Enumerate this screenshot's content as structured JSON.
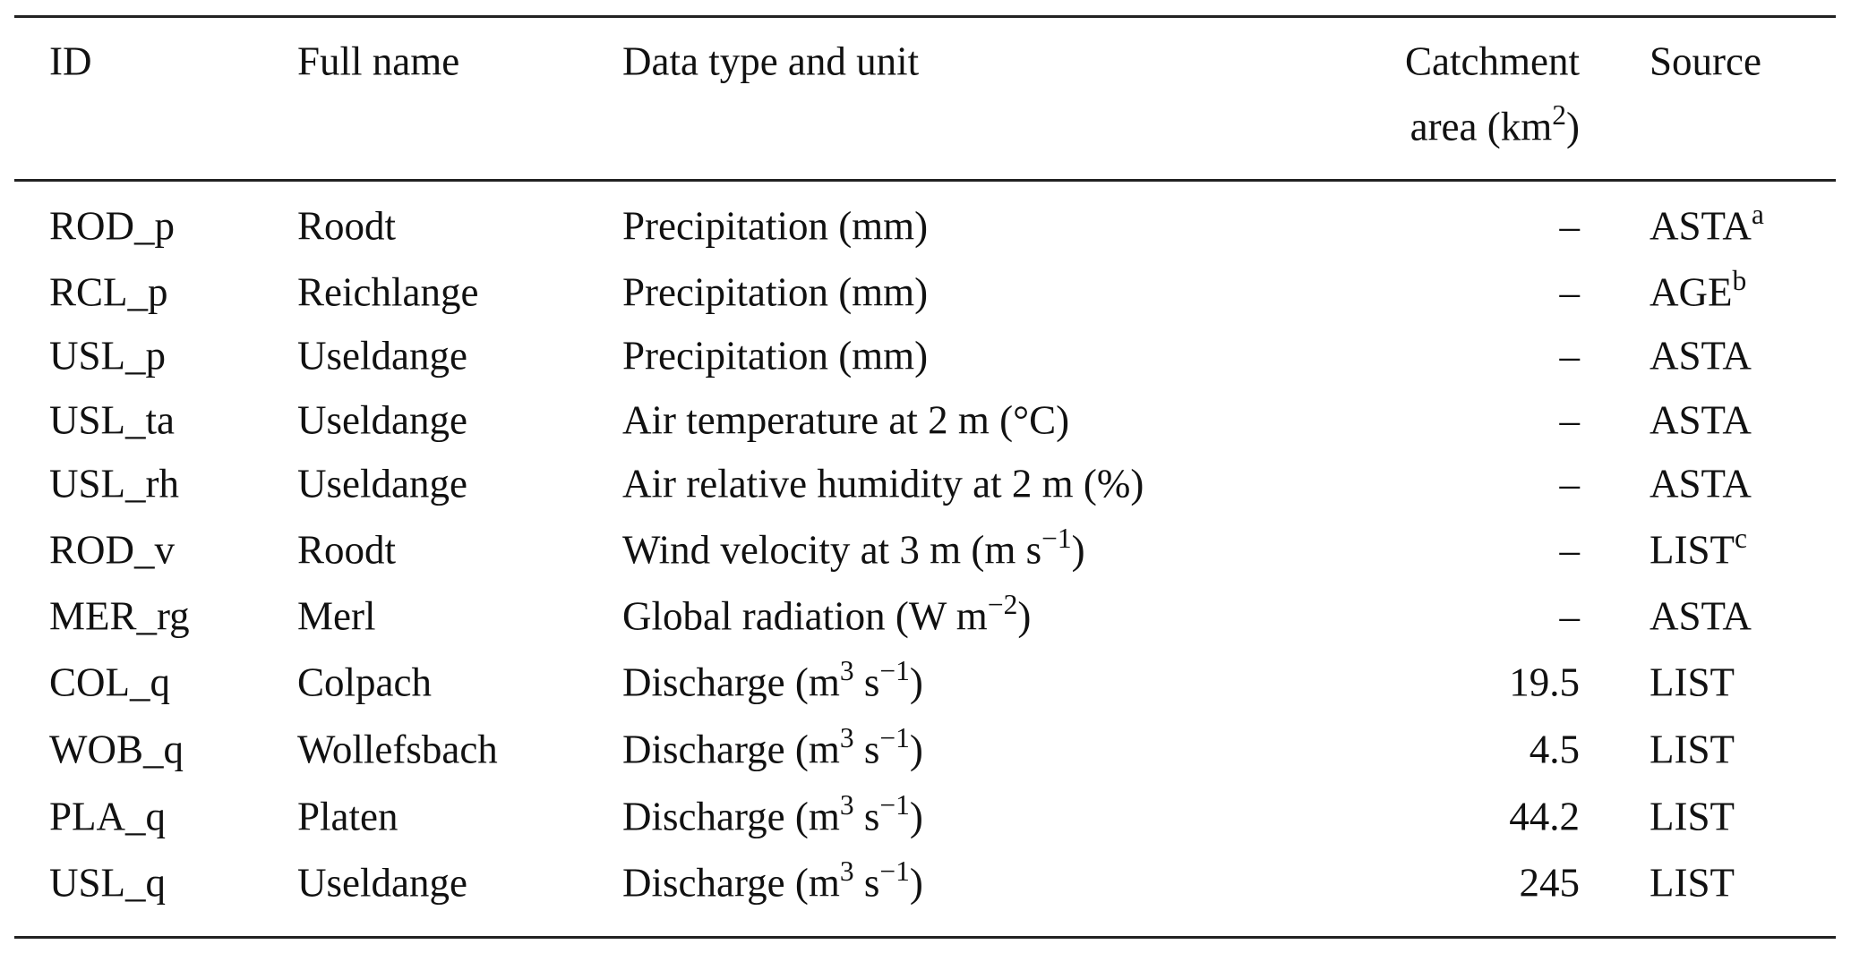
{
  "table": {
    "headers": {
      "id": "ID",
      "full_name": "Full name",
      "data_type": "Data type and unit",
      "catchment_line1": "Catchment",
      "catchment_line2_pre": "area (km",
      "catchment_line2_sup": "2",
      "catchment_line2_post": ")",
      "source": "Source"
    },
    "rows": [
      {
        "id": "ROD_p",
        "name": "Roodt",
        "type": "Precipitation (mm)",
        "type_sup1": "",
        "type_mid": "",
        "type_sup2": "",
        "type_post": "",
        "area": "–",
        "source": "ASTA",
        "source_sup": "a"
      },
      {
        "id": "RCL_p",
        "name": "Reichlange",
        "type": "Precipitation (mm)",
        "type_sup1": "",
        "type_mid": "",
        "type_sup2": "",
        "type_post": "",
        "area": "–",
        "source": "AGE",
        "source_sup": "b"
      },
      {
        "id": "USL_p",
        "name": "Useldange",
        "type": "Precipitation (mm)",
        "type_sup1": "",
        "type_mid": "",
        "type_sup2": "",
        "type_post": "",
        "area": "–",
        "source": "ASTA",
        "source_sup": ""
      },
      {
        "id": "USL_ta",
        "name": "Useldange",
        "type": "Air temperature at 2 m (°C)",
        "type_sup1": "",
        "type_mid": "",
        "type_sup2": "",
        "type_post": "",
        "area": "–",
        "source": "ASTA",
        "source_sup": ""
      },
      {
        "id": "USL_rh",
        "name": "Useldange",
        "type": "Air relative humidity at 2 m (%)",
        "type_sup1": "",
        "type_mid": "",
        "type_sup2": "",
        "type_post": "",
        "area": "–",
        "source": "ASTA",
        "source_sup": ""
      },
      {
        "id": "ROD_v",
        "name": "Roodt",
        "type": "Wind velocity at 3 m (m s",
        "type_sup1": "",
        "type_mid": "",
        "type_sup2": "−1",
        "type_post": ")",
        "area": "–",
        "source": "LIST",
        "source_sup": "c"
      },
      {
        "id": "MER_rg",
        "name": "Merl",
        "type": "Global radiation (W m",
        "type_sup1": "",
        "type_mid": "",
        "type_sup2": "−2",
        "type_post": ")",
        "area": "–",
        "source": "ASTA",
        "source_sup": ""
      },
      {
        "id": "COL_q",
        "name": "Colpach",
        "type": "Discharge (m",
        "type_sup1": "3",
        "type_mid": " s",
        "type_sup2": "−1",
        "type_post": ")",
        "area": "19.5",
        "source": "LIST",
        "source_sup": ""
      },
      {
        "id": "WOB_q",
        "name": "Wollefsbach",
        "type": "Discharge (m",
        "type_sup1": "3",
        "type_mid": " s",
        "type_sup2": "−1",
        "type_post": ")",
        "area": "4.5",
        "source": "LIST",
        "source_sup": ""
      },
      {
        "id": "PLA_q",
        "name": "Platen",
        "type": "Discharge (m",
        "type_sup1": "3",
        "type_mid": " s",
        "type_sup2": "−1",
        "type_post": ")",
        "area": "44.2",
        "source": "LIST",
        "source_sup": ""
      },
      {
        "id": "USL_q",
        "name": "Useldange",
        "type": "Discharge (m",
        "type_sup1": "3",
        "type_mid": " s",
        "type_sup2": "−1",
        "type_post": ")",
        "area": "245",
        "source": "LIST",
        "source_sup": ""
      }
    ]
  }
}
